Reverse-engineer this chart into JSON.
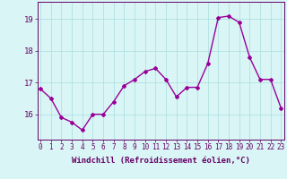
{
  "x": [
    0,
    1,
    2,
    3,
    4,
    5,
    6,
    7,
    8,
    9,
    10,
    11,
    12,
    13,
    14,
    15,
    16,
    17,
    18,
    19,
    20,
    21,
    22,
    23
  ],
  "y": [
    16.8,
    16.5,
    15.9,
    15.75,
    15.5,
    16.0,
    16.0,
    16.4,
    16.9,
    17.1,
    17.35,
    17.45,
    17.1,
    16.55,
    16.85,
    16.85,
    17.6,
    19.05,
    19.1,
    18.9,
    17.8,
    17.1,
    17.1,
    16.2
  ],
  "line_color": "#990099",
  "marker": "D",
  "marker_size": 2,
  "bg_color": "#d9f5f5",
  "grid_color": "#aadddd",
  "axis_color": "#660066",
  "xlabel": "Windchill (Refroidissement éolien,°C)",
  "xlabel_fontsize": 6.5,
  "yticks": [
    16,
    17,
    18,
    19
  ],
  "xtick_labels": [
    "0",
    "1",
    "2",
    "3",
    "4",
    "5",
    "6",
    "7",
    "8",
    "9",
    "10",
    "11",
    "12",
    "13",
    "14",
    "15",
    "16",
    "17",
    "18",
    "19",
    "20",
    "21",
    "22",
    "23"
  ],
  "xticks": [
    0,
    1,
    2,
    3,
    4,
    5,
    6,
    7,
    8,
    9,
    10,
    11,
    12,
    13,
    14,
    15,
    16,
    17,
    18,
    19,
    20,
    21,
    22,
    23
  ],
  "ylim": [
    15.2,
    19.55
  ],
  "xlim": [
    -0.3,
    23.3
  ],
  "tick_fontsize": 5.5,
  "ytick_fontsize": 6.5,
  "line_width": 1.0
}
